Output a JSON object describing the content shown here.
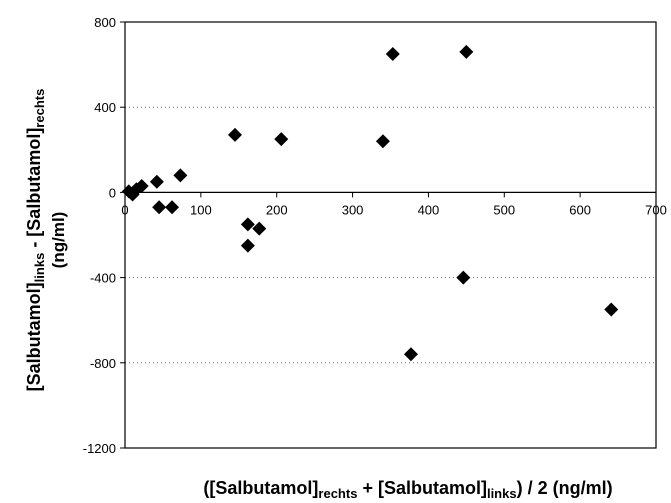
{
  "chart_data": {
    "type": "scatter",
    "title": "",
    "xlabel": {
      "prefix": "([Salbutamol]",
      "sub1": "rechts",
      "mid": " + [Salbutamol]",
      "sub2": "links",
      "suffix": ") / 2 (ng/ml)"
    },
    "ylabel": {
      "prefix": "[Salbutamol]",
      "sub1": "links",
      "mid": " - [Salbutamol]",
      "sub2": "rechts",
      "line2": "(ng/ml)"
    },
    "xlim": [
      0,
      700
    ],
    "ylim": [
      -1200,
      800
    ],
    "xticks": [
      "0",
      "100",
      "200",
      "300",
      "400",
      "500",
      "600",
      "700"
    ],
    "yticks": [
      "800",
      "400",
      "0",
      "-400",
      "-800",
      "-1200"
    ],
    "grid": "horizontal dotted",
    "marker": "diamond",
    "marker_color": "#000000",
    "points": [
      {
        "x": 5,
        "y": 5
      },
      {
        "x": 10,
        "y": -10
      },
      {
        "x": 15,
        "y": 15
      },
      {
        "x": 22,
        "y": 30
      },
      {
        "x": 42,
        "y": 50
      },
      {
        "x": 45,
        "y": -70
      },
      {
        "x": 62,
        "y": -70
      },
      {
        "x": 73,
        "y": 80
      },
      {
        "x": 145,
        "y": 270
      },
      {
        "x": 162,
        "y": -150
      },
      {
        "x": 162,
        "y": -250
      },
      {
        "x": 177,
        "y": -170
      },
      {
        "x": 206,
        "y": 250
      },
      {
        "x": 340,
        "y": 240
      },
      {
        "x": 353,
        "y": 650
      },
      {
        "x": 377,
        "y": -760
      },
      {
        "x": 446,
        "y": -400
      },
      {
        "x": 450,
        "y": 660
      },
      {
        "x": 641,
        "y": -550
      }
    ]
  }
}
